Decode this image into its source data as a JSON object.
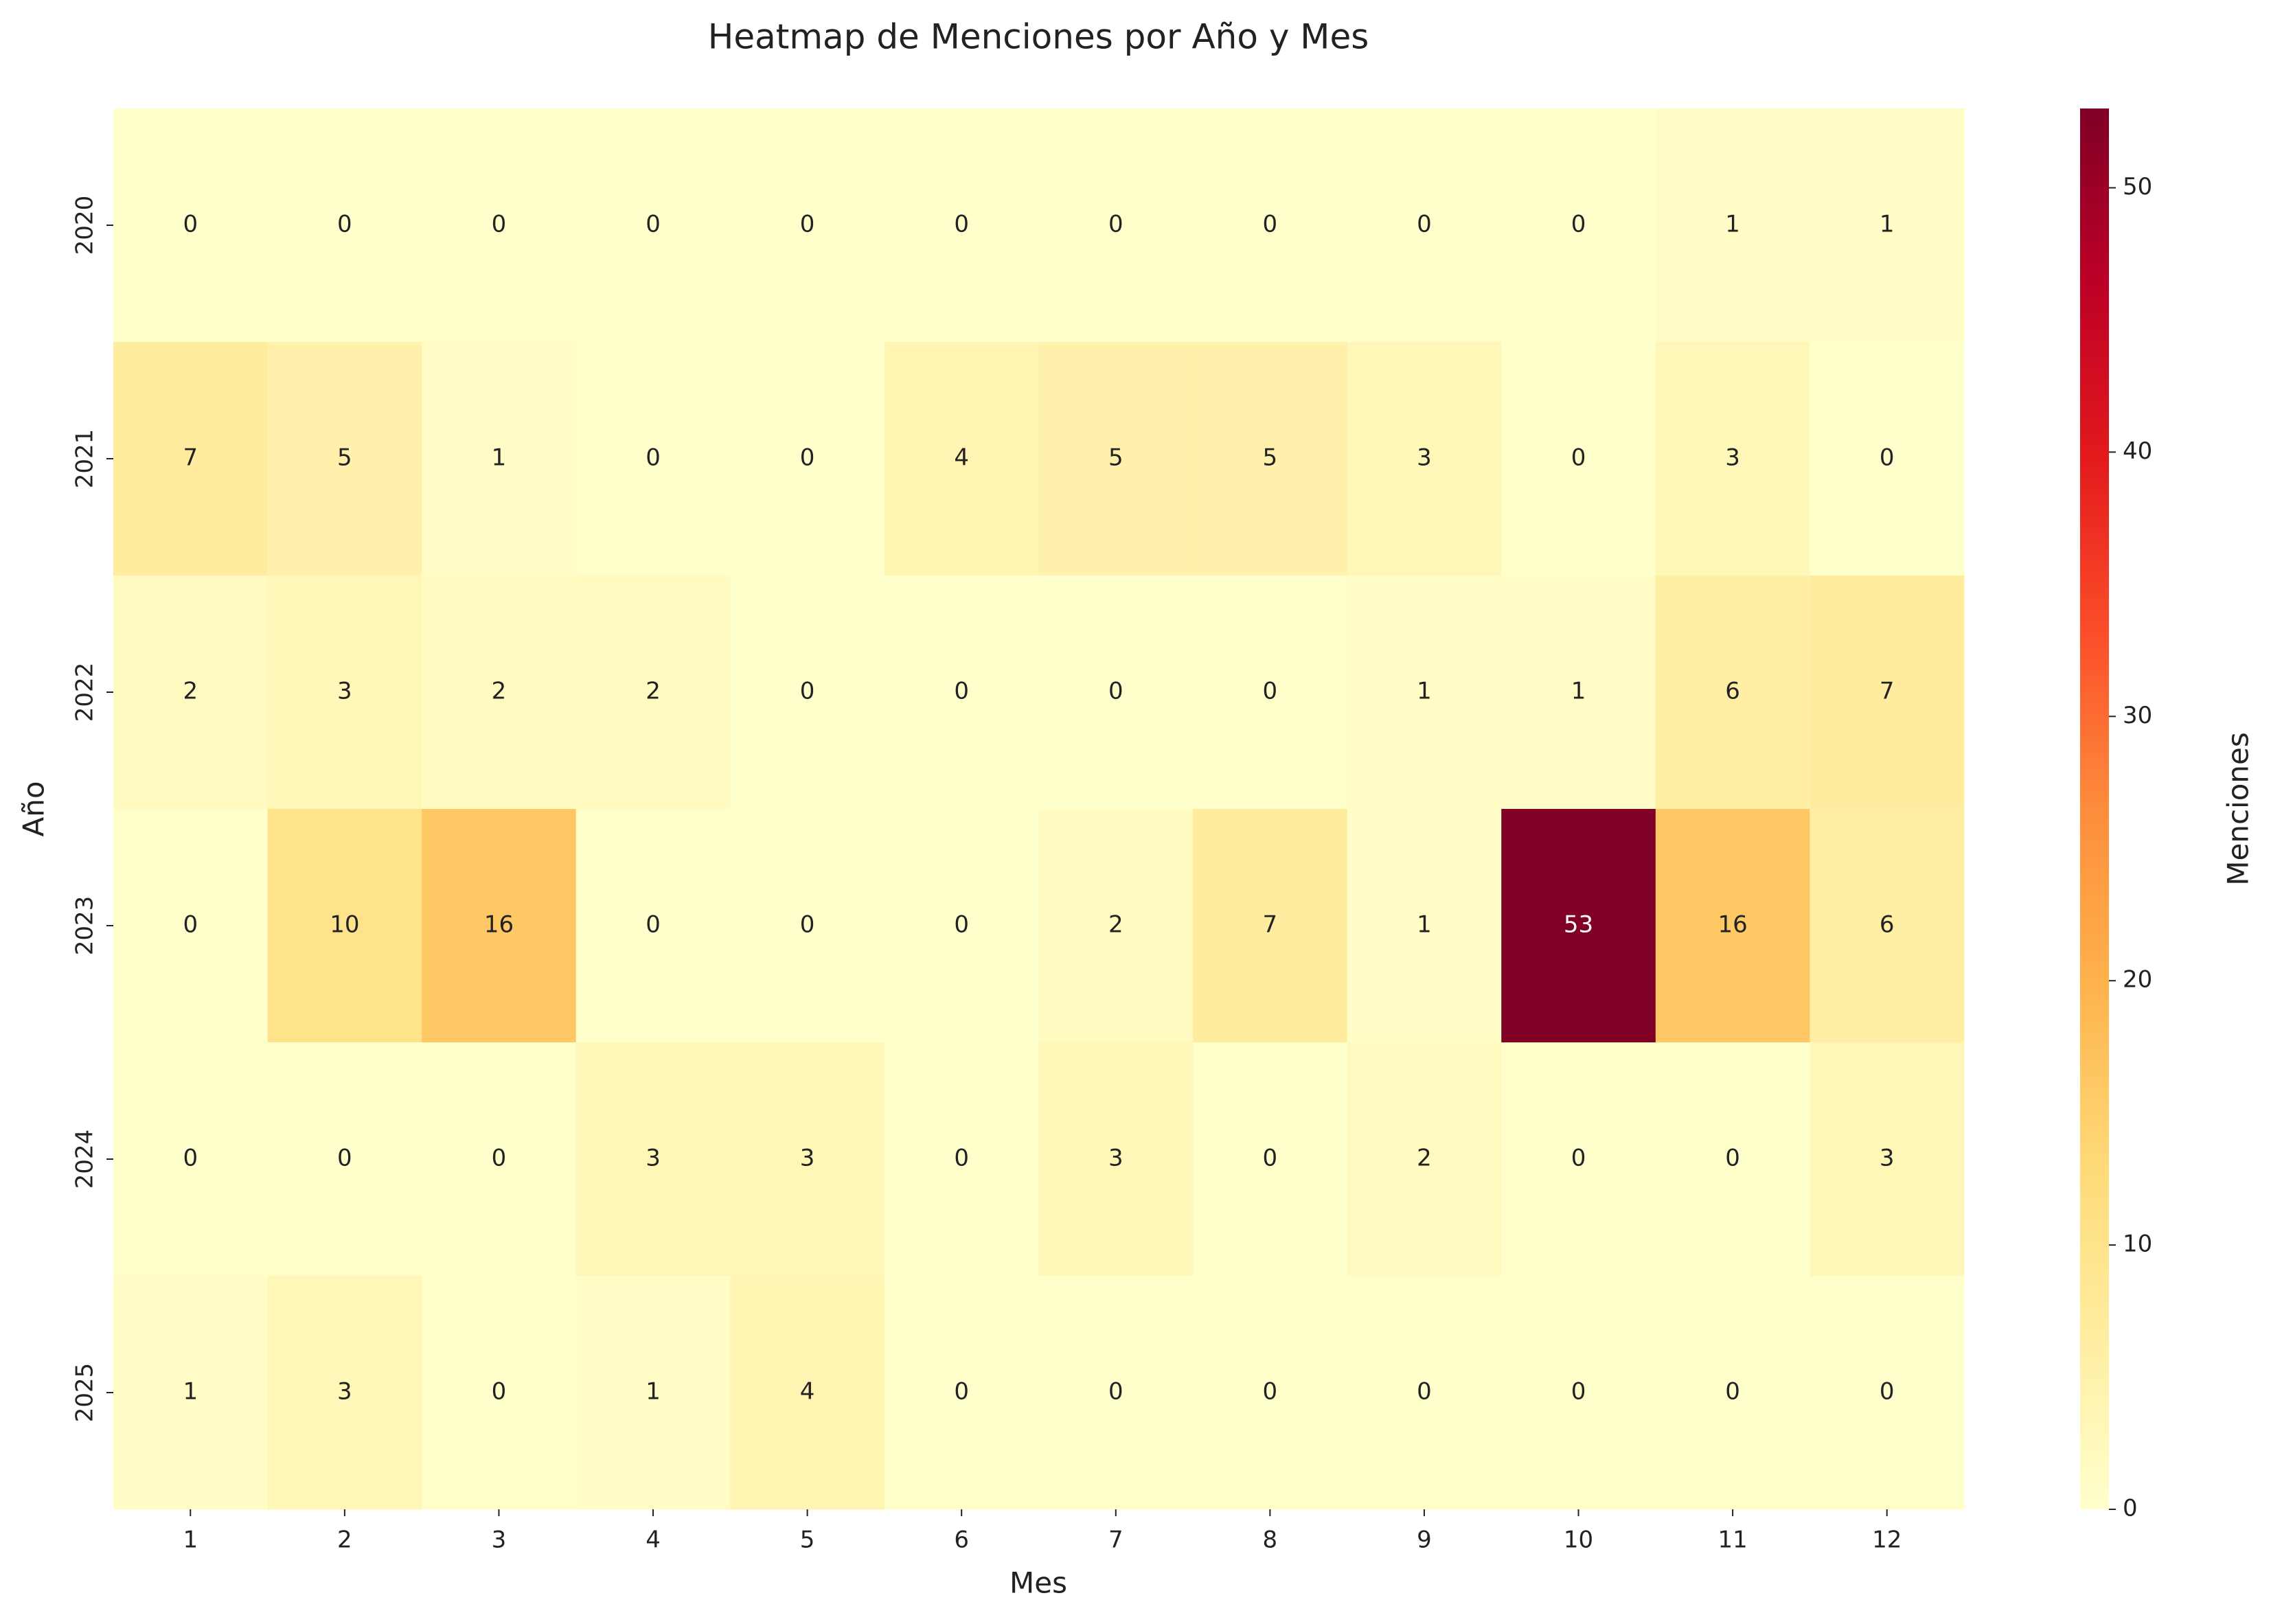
{
  "chart_data": {
    "type": "heatmap",
    "title": "Heatmap de Menciones por Año y Mes",
    "x_label": "Mes",
    "y_label": "Año",
    "x_categories": [
      "1",
      "2",
      "3",
      "4",
      "5",
      "6",
      "7",
      "8",
      "9",
      "10",
      "11",
      "12"
    ],
    "y_categories": [
      "2020",
      "2021",
      "2022",
      "2023",
      "2024",
      "2025"
    ],
    "values": [
      [
        0,
        0,
        0,
        0,
        0,
        0,
        0,
        0,
        0,
        0,
        1,
        1
      ],
      [
        7,
        5,
        1,
        0,
        0,
        4,
        5,
        5,
        3,
        0,
        3,
        0
      ],
      [
        2,
        3,
        2,
        2,
        0,
        0,
        0,
        0,
        1,
        1,
        6,
        7
      ],
      [
        0,
        10,
        16,
        0,
        0,
        0,
        2,
        7,
        1,
        53,
        16,
        6
      ],
      [
        0,
        0,
        0,
        3,
        3,
        0,
        3,
        0,
        2,
        0,
        0,
        3
      ],
      [
        1,
        3,
        0,
        1,
        4,
        0,
        0,
        0,
        0,
        0,
        0,
        0
      ]
    ],
    "colormap": [
      "#ffffcc",
      "#ffeda0",
      "#fed976",
      "#feb24c",
      "#fd8d3c",
      "#fc4e2a",
      "#e31a1c",
      "#bd0026",
      "#800026"
    ],
    "zlim": [
      0,
      53
    ],
    "colorbar": {
      "label": "Menciones",
      "ticks": [
        0,
        10,
        20,
        30,
        40,
        50
      ]
    }
  }
}
